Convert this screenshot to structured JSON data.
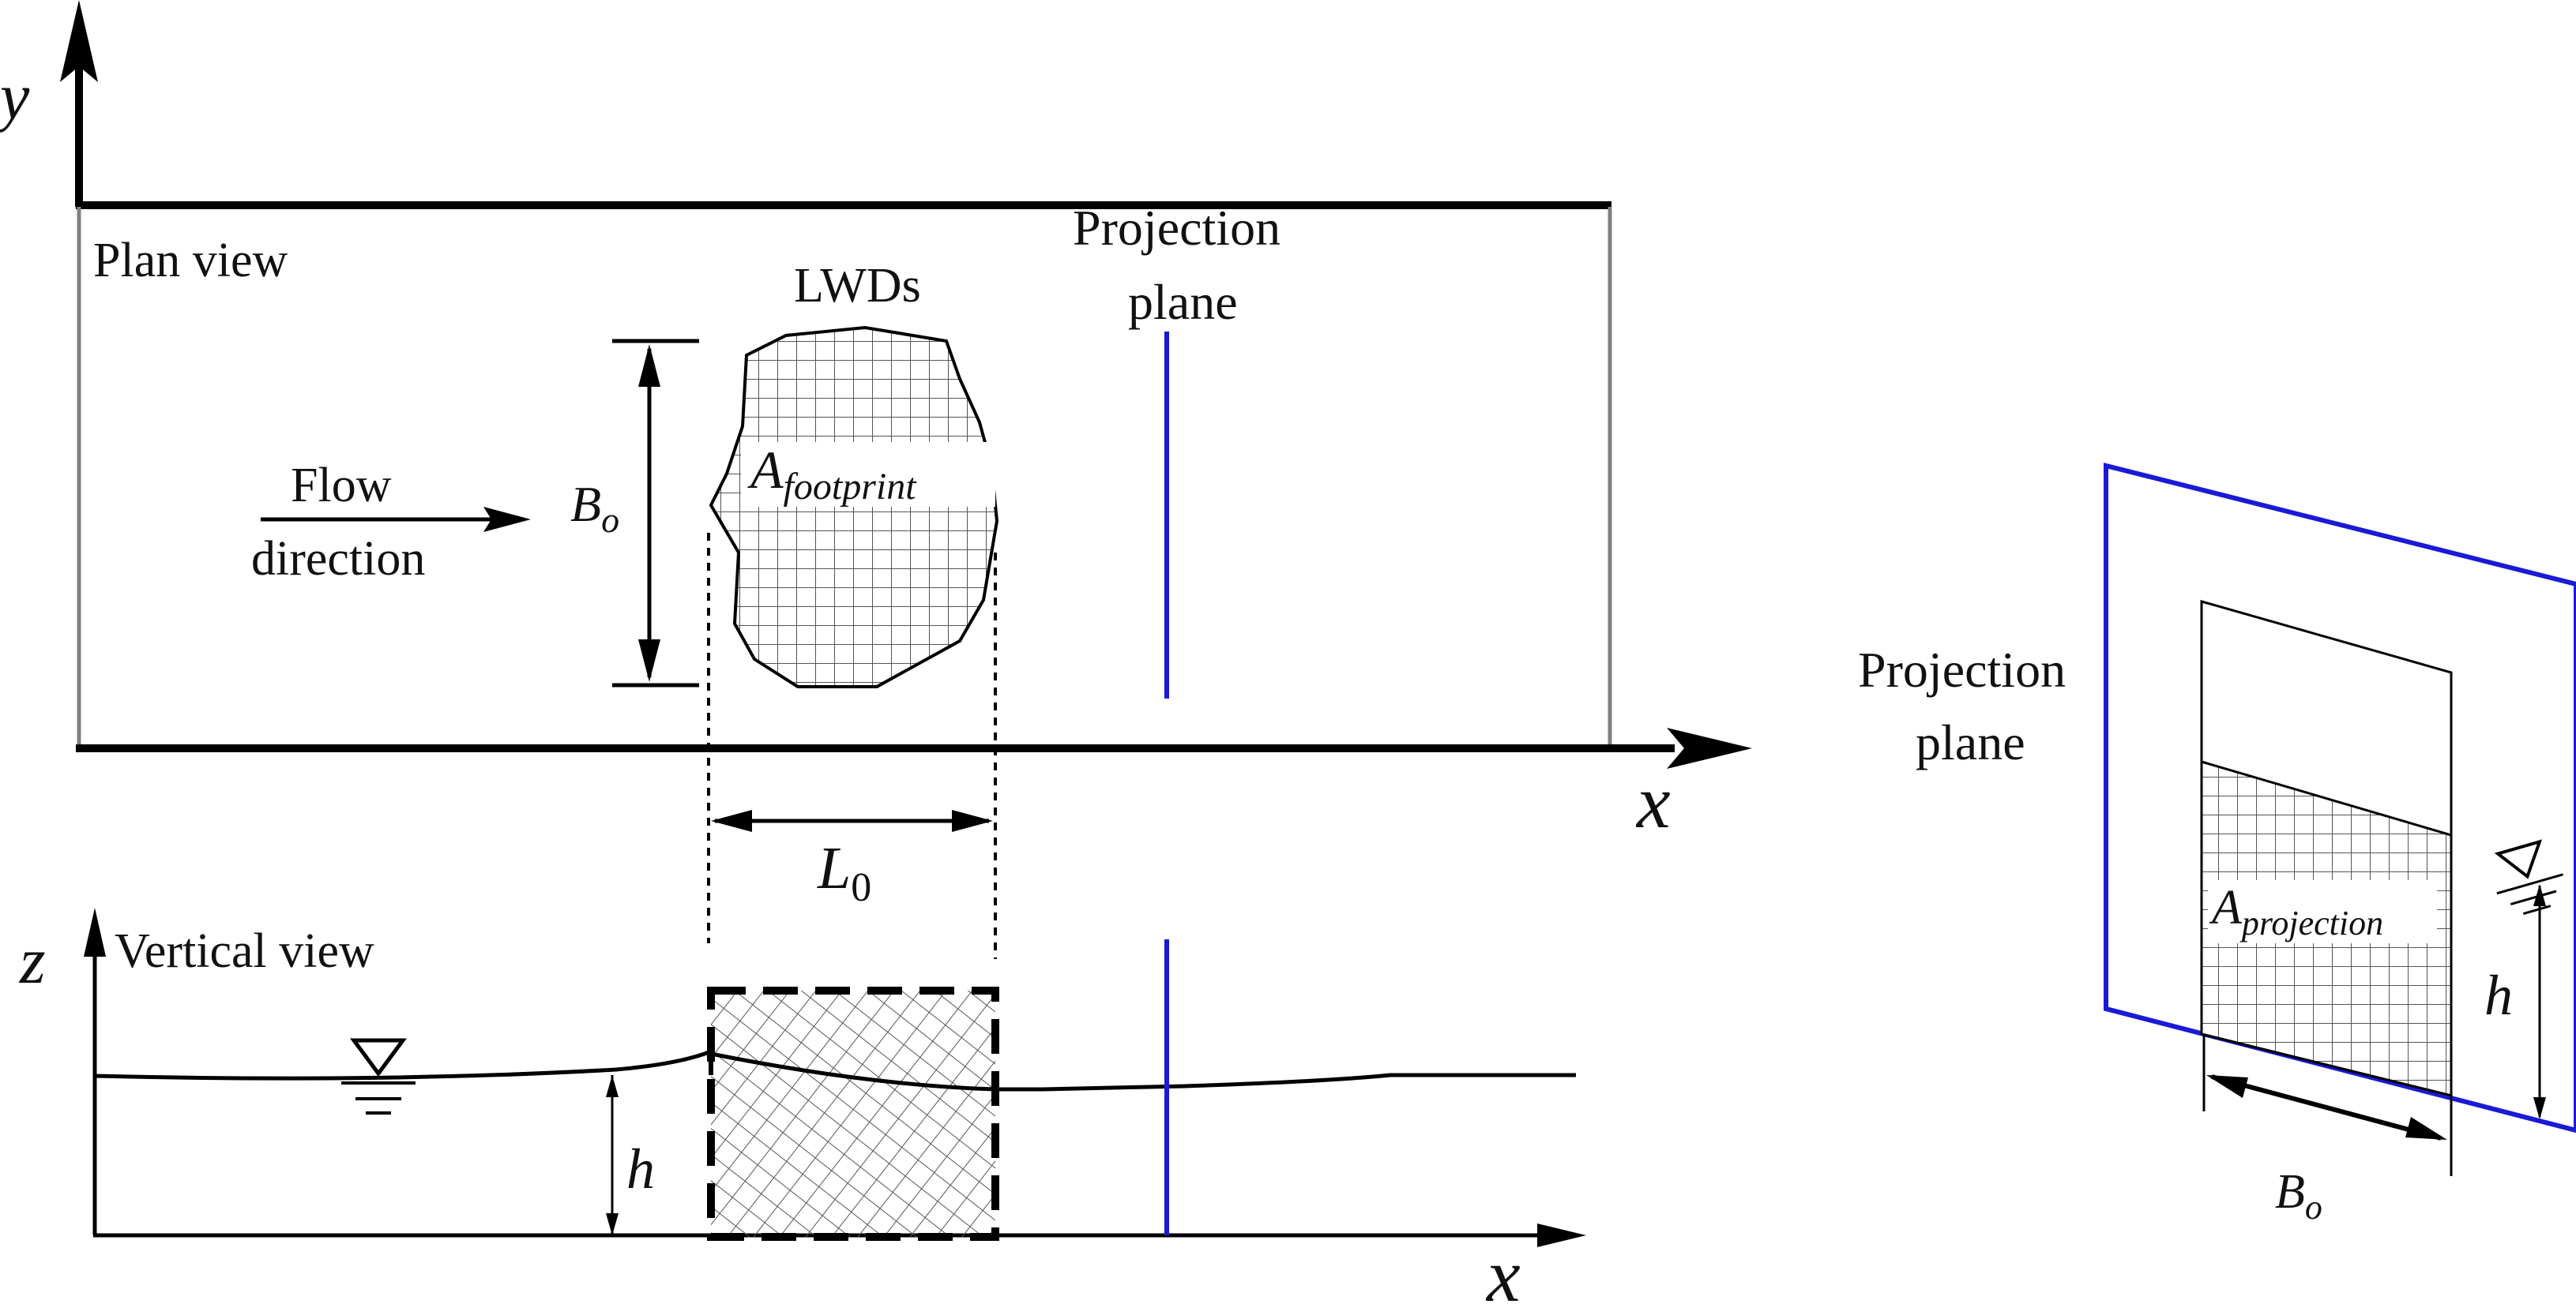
{
  "axes": {
    "plan_y": "y",
    "plan_x": "x",
    "vertical_z": "z",
    "vertical_x": "x"
  },
  "plan_view": {
    "title": "Plan view",
    "lwds_label": "LWDs",
    "footprint_label": "A",
    "footprint_sub": "footprint",
    "bo_label": "B",
    "bo_sub": "o",
    "flow_line1": "Flow",
    "flow_line2": "direction",
    "projection_line1": "Projection",
    "projection_line2": "plane"
  },
  "length_label": "L",
  "length_sub": "0",
  "vertical_view": {
    "title": "Vertical view",
    "h_label": "h"
  },
  "projection_detail": {
    "label_line1": "Projection",
    "label_line2": "plane",
    "area_label": "A",
    "area_sub": "projection",
    "h_label": "h",
    "bo_label": "B",
    "bo_sub": "o"
  },
  "colors": {
    "projection_plane": "#1a1ad6",
    "outline": "#000000",
    "channel_side": "#808080",
    "hatch": "#555555"
  }
}
